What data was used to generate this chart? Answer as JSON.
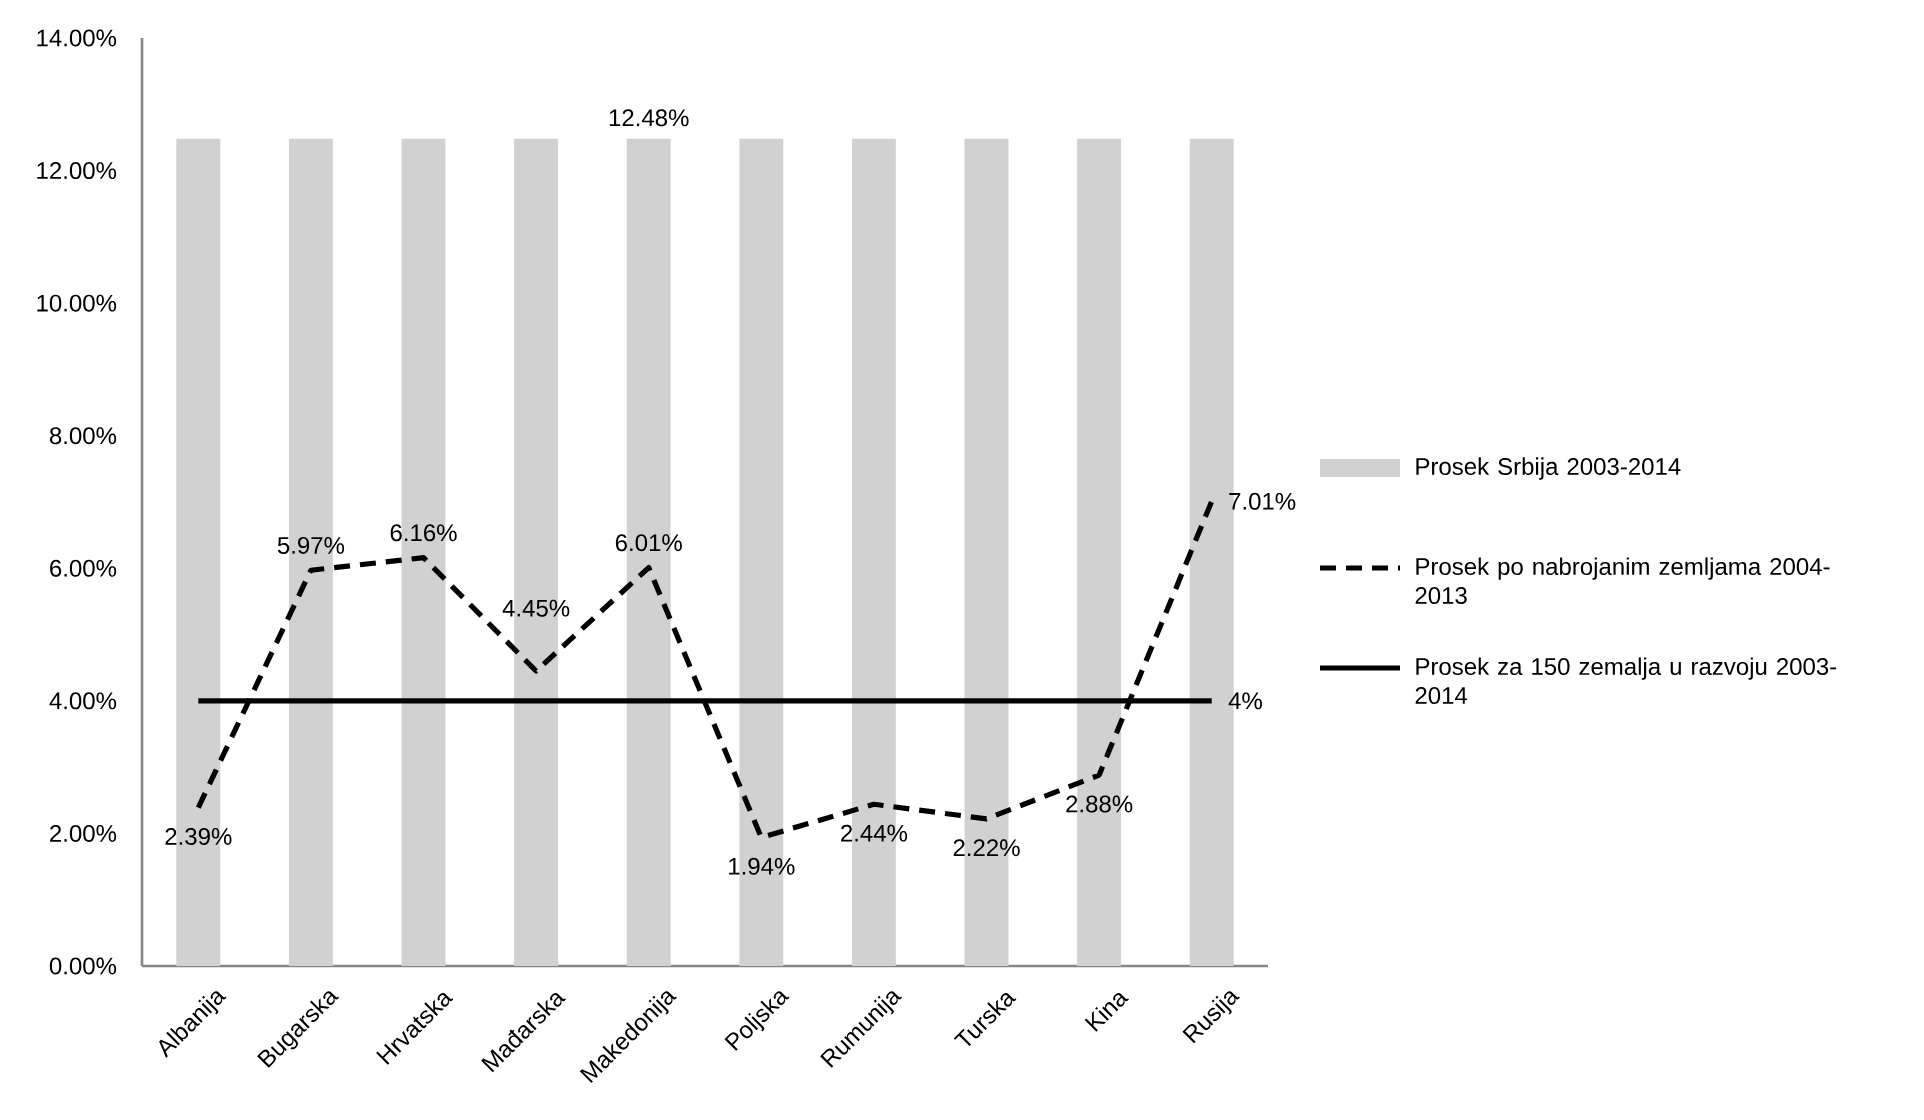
{
  "chart_data": {
    "type": "bar",
    "categories": [
      "Albanija",
      "Bugarska",
      "Hrvatska",
      "Mađarska",
      "Makedonija",
      "Poljska",
      "Rumunija",
      "Turska",
      "Kina",
      "Rusija"
    ],
    "series": [
      {
        "name": "Prosek Srbija 2003-2014",
        "color": "#d1d1d1",
        "values": [
          12.48,
          12.48,
          12.48,
          12.48,
          12.48,
          12.48,
          12.48,
          12.48,
          12.48,
          12.48
        ],
        "value_labels": [
          null,
          null,
          null,
          null,
          "12.48%",
          null,
          null,
          null,
          null,
          null
        ]
      },
      {
        "name": "Prosek po nabrojanim zemljama 2004-2013",
        "type": "line",
        "color": "#000000",
        "line_style": "dashed",
        "values": [
          2.39,
          5.97,
          6.16,
          4.45,
          6.01,
          1.94,
          2.44,
          2.22,
          2.88,
          7.01
        ],
        "value_labels": [
          "2.39%",
          "5.97%",
          "6.16%",
          "4.45%",
          "6.01%",
          "1.94%",
          "2.44%",
          "2.22%",
          "2.88%",
          "7.01%"
        ]
      },
      {
        "name": "Prosek za 150 zemalja u razvoju 2003-2014",
        "type": "line",
        "color": "#000000",
        "line_style": "solid",
        "values": [
          4,
          4,
          4,
          4,
          4,
          4,
          4,
          4,
          4,
          4
        ],
        "value_labels": [
          null,
          null,
          null,
          null,
          null,
          null,
          null,
          null,
          null,
          "4%"
        ]
      }
    ],
    "ylim": [
      0,
      14
    ],
    "yticks": [
      {
        "value": 0,
        "label": "0.00%"
      },
      {
        "value": 2,
        "label": "2.00%"
      },
      {
        "value": 4,
        "label": "4.00%"
      },
      {
        "value": 6,
        "label": "6.00%"
      },
      {
        "value": 8,
        "label": "8.00%"
      },
      {
        "value": 10,
        "label": "10.00%"
      },
      {
        "value": 12,
        "label": "12.00%"
      },
      {
        "value": 14,
        "label": "14.00%"
      }
    ],
    "legend": "right",
    "marker": "none"
  }
}
